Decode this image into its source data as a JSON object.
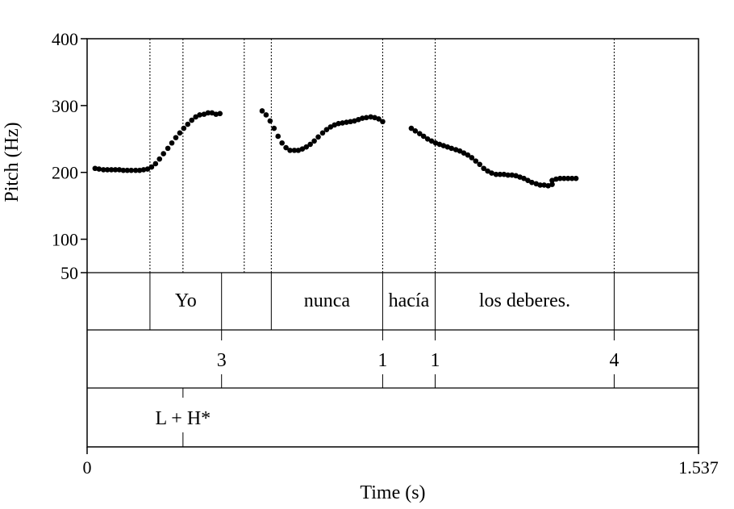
{
  "chart_data": {
    "type": "scatter",
    "title": "",
    "xlabel": "Time (s)",
    "ylabel": "Pitch (Hz)",
    "xlim": [
      0,
      1.537
    ],
    "ylim": [
      50,
      400
    ],
    "x_tick_labels": [
      "0",
      "1.537"
    ],
    "y_ticks": [
      {
        "value": 400,
        "label": "400"
      },
      {
        "value": 300,
        "label": "300"
      },
      {
        "value": 200,
        "label": "200"
      },
      {
        "value": 100,
        "label": "100"
      },
      {
        "value": 50,
        "label": "50"
      }
    ],
    "grid": false,
    "point_color": "#000000",
    "series": [
      {
        "x": [
          0.02,
          0.03,
          0.041,
          0.051,
          0.061,
          0.071,
          0.081,
          0.091,
          0.101,
          0.111,
          0.122,
          0.132,
          0.142,
          0.152,
          0.162,
          0.172,
          0.182,
          0.192,
          0.203,
          0.213,
          0.223,
          0.233,
          0.243,
          0.253,
          0.263,
          0.273,
          0.283,
          0.294,
          0.304,
          0.314,
          0.324,
          0.334
        ],
        "y": [
          206,
          205,
          204,
          204,
          204,
          204,
          204,
          203,
          203,
          203,
          203,
          203,
          204,
          205,
          208,
          213,
          220,
          228,
          236,
          244,
          252,
          259,
          266,
          272,
          278,
          283,
          286,
          287,
          289,
          289,
          287,
          288
        ]
      },
      {
        "x": [
          0.44,
          0.45,
          0.46,
          0.47,
          0.48,
          0.49,
          0.5,
          0.51,
          0.521,
          0.531,
          0.541,
          0.551,
          0.561,
          0.571,
          0.581,
          0.592,
          0.602,
          0.612,
          0.622,
          0.632,
          0.642,
          0.652,
          0.662,
          0.672,
          0.682,
          0.692,
          0.702,
          0.713,
          0.723,
          0.733,
          0.743
        ],
        "y": [
          292,
          286,
          277,
          266,
          254,
          244,
          237,
          233,
          233,
          233,
          235,
          238,
          242,
          247,
          253,
          259,
          264,
          268,
          271,
          273,
          274,
          275,
          276,
          277,
          279,
          281,
          282,
          283,
          282,
          280,
          276
        ]
      },
      {
        "x": [
          0.815,
          0.825,
          0.836,
          0.846,
          0.856,
          0.866,
          0.876,
          0.886,
          0.896,
          0.906,
          0.916,
          0.927,
          0.937,
          0.947,
          0.957,
          0.967,
          0.977,
          0.987,
          0.997,
          1.007,
          1.017,
          1.028,
          1.038,
          1.048,
          1.058,
          1.068,
          1.078,
          1.088,
          1.098,
          1.108,
          1.118,
          1.129,
          1.139,
          1.149,
          1.159,
          1.169
        ],
        "y": [
          266,
          262,
          258,
          254,
          250,
          247,
          244,
          242,
          240,
          238,
          236,
          234,
          232,
          229,
          226,
          222,
          217,
          212,
          206,
          202,
          199,
          197,
          197,
          197,
          196,
          196,
          195,
          193,
          191,
          188,
          185,
          183,
          181,
          181,
          180,
          182
        ]
      },
      {
        "x": [
          1.169,
          1.179,
          1.189,
          1.199,
          1.209,
          1.219,
          1.229
        ],
        "y": [
          188,
          190,
          191,
          191,
          191,
          191,
          191
        ]
      }
    ],
    "boundaries_full": [
      0.395,
      0.463,
      0.743,
      0.875,
      1.325
    ],
    "boundaries_upper": [
      0.158,
      0.241
    ],
    "tiers": {
      "words": [
        {
          "text": "Yo",
          "start": 0.158,
          "end": 0.338
        },
        {
          "text": "nunca",
          "start": 0.463,
          "end": 0.743
        },
        {
          "text": "hacía",
          "start": 0.743,
          "end": 0.875
        },
        {
          "text": "los deberes.",
          "start": 0.875,
          "end": 1.325
        }
      ],
      "word_boundaries": [
        0.158,
        0.338,
        0.463,
        0.743,
        0.875,
        1.325
      ],
      "break_indices": [
        {
          "text": "3",
          "time": 0.338
        },
        {
          "text": "1",
          "time": 0.743
        },
        {
          "text": "1",
          "time": 0.875
        },
        {
          "text": "4",
          "time": 1.325
        }
      ],
      "tones": [
        {
          "text": "L + H*",
          "time": 0.241
        }
      ]
    }
  }
}
